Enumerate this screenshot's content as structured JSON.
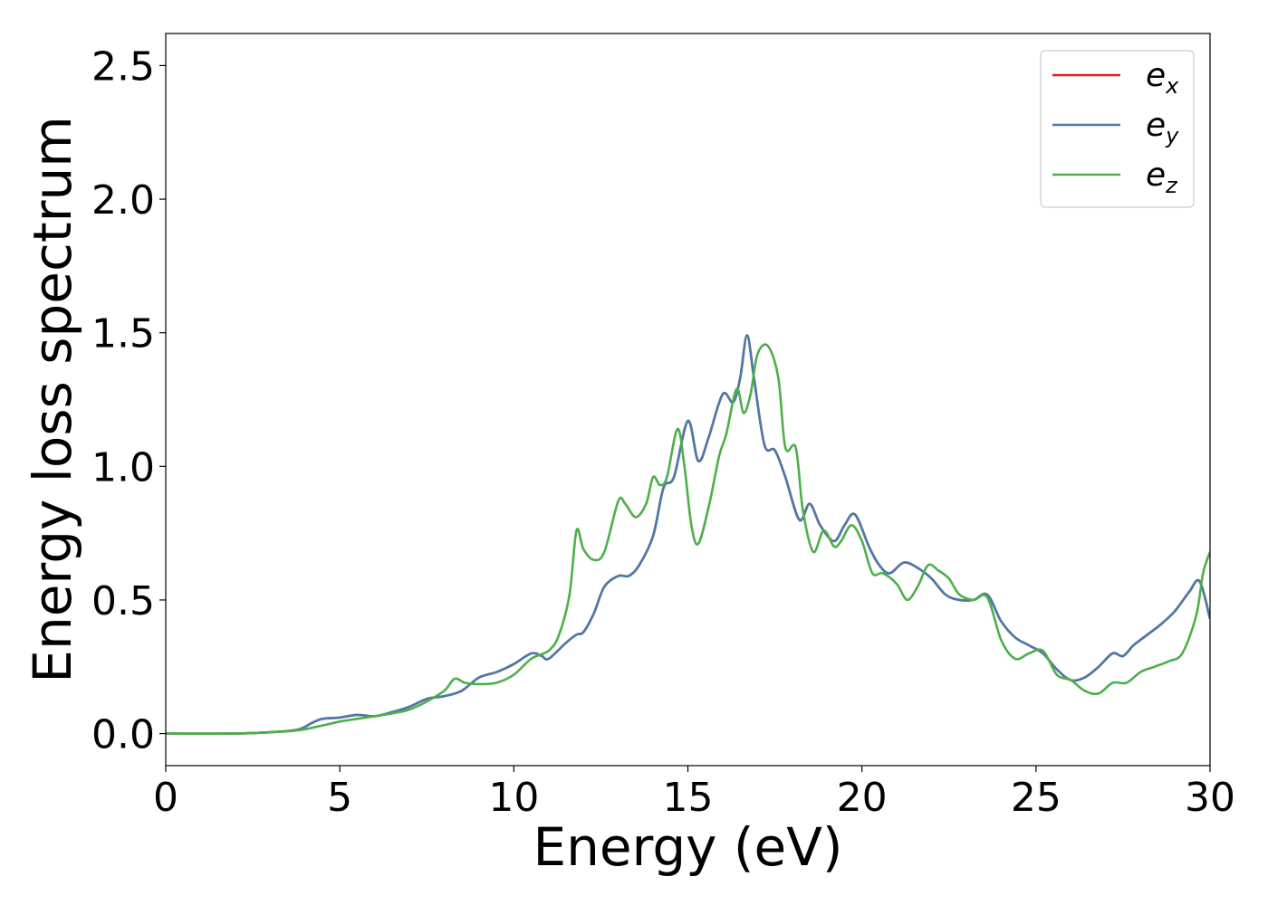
{
  "chart_data": {
    "type": "line",
    "title": "",
    "xlabel": "Energy (eV)",
    "ylabel": "Energy loss spectrum",
    "xlim": [
      0,
      30
    ],
    "ylim": [
      -0.12,
      2.62
    ],
    "xticks": [
      0,
      5,
      10,
      15,
      20,
      25,
      30
    ],
    "xtick_labels": [
      "0",
      "5",
      "10",
      "15",
      "20",
      "25",
      "30"
    ],
    "yticks": [
      0.0,
      0.5,
      1.0,
      1.5,
      2.0,
      2.5
    ],
    "ytick_labels": [
      "0.0",
      "0.5",
      "1.0",
      "1.5",
      "2.0",
      "2.5"
    ],
    "grid": false,
    "legend_position": "top-right",
    "series": [
      {
        "name": "e_x",
        "legend_base": "e",
        "legend_sub": "x",
        "color": "#e41a1c",
        "x": [
          0,
          2,
          3,
          3.8,
          4.2,
          4.5,
          5,
          5.5,
          6,
          6.5,
          7,
          7.5,
          8,
          8.5,
          9,
          9.5,
          10,
          10.5,
          10.8,
          11,
          11.5,
          11.8,
          12,
          12.3,
          12.6,
          13,
          13.3,
          13.6,
          14,
          14.3,
          14.6,
          15,
          15.3,
          15.6,
          16,
          16.3,
          16.5,
          16.7,
          16.9,
          17.2,
          17.5,
          17.8,
          18.2,
          18.5,
          18.8,
          19.2,
          19.5,
          19.8,
          20.2,
          20.5,
          20.8,
          21.2,
          21.6,
          22,
          22.4,
          22.8,
          23.2,
          23.6,
          24,
          24.4,
          24.8,
          25.2,
          25.6,
          26,
          26.4,
          26.8,
          27.2,
          27.5,
          27.8,
          28.2,
          28.6,
          29,
          29.4,
          29.7,
          30
        ],
        "y": [
          0.0,
          0.0,
          0.005,
          0.015,
          0.04,
          0.055,
          0.06,
          0.07,
          0.065,
          0.08,
          0.1,
          0.13,
          0.14,
          0.16,
          0.21,
          0.23,
          0.26,
          0.3,
          0.29,
          0.28,
          0.34,
          0.37,
          0.38,
          0.45,
          0.55,
          0.59,
          0.59,
          0.63,
          0.74,
          0.92,
          0.96,
          1.17,
          1.02,
          1.11,
          1.27,
          1.24,
          1.33,
          1.49,
          1.33,
          1.08,
          1.06,
          0.96,
          0.8,
          0.86,
          0.78,
          0.72,
          0.78,
          0.82,
          0.7,
          0.63,
          0.6,
          0.64,
          0.62,
          0.58,
          0.52,
          0.5,
          0.5,
          0.52,
          0.42,
          0.36,
          0.33,
          0.3,
          0.24,
          0.2,
          0.21,
          0.25,
          0.3,
          0.29,
          0.33,
          0.37,
          0.41,
          0.46,
          0.53,
          0.57,
          0.43
        ]
      },
      {
        "name": "e_y",
        "legend_base": "e",
        "legend_sub": "y",
        "color": "#4a7aab",
        "x": [
          0,
          2,
          3,
          3.8,
          4.2,
          4.5,
          5,
          5.5,
          6,
          6.5,
          7,
          7.5,
          8,
          8.5,
          9,
          9.5,
          10,
          10.5,
          10.8,
          11,
          11.5,
          11.8,
          12,
          12.3,
          12.6,
          13,
          13.3,
          13.6,
          14,
          14.3,
          14.6,
          15,
          15.3,
          15.6,
          16,
          16.3,
          16.5,
          16.7,
          16.9,
          17.2,
          17.5,
          17.8,
          18.2,
          18.5,
          18.8,
          19.2,
          19.5,
          19.8,
          20.2,
          20.5,
          20.8,
          21.2,
          21.6,
          22,
          22.4,
          22.8,
          23.2,
          23.6,
          24,
          24.4,
          24.8,
          25.2,
          25.6,
          26,
          26.4,
          26.8,
          27.2,
          27.5,
          27.8,
          28.2,
          28.6,
          29,
          29.4,
          29.7,
          30
        ],
        "y": [
          0.0,
          0.0,
          0.005,
          0.015,
          0.04,
          0.055,
          0.06,
          0.07,
          0.065,
          0.08,
          0.1,
          0.13,
          0.14,
          0.16,
          0.21,
          0.23,
          0.26,
          0.3,
          0.29,
          0.28,
          0.34,
          0.37,
          0.38,
          0.45,
          0.55,
          0.59,
          0.59,
          0.63,
          0.74,
          0.92,
          0.96,
          1.17,
          1.02,
          1.11,
          1.27,
          1.24,
          1.33,
          1.49,
          1.33,
          1.08,
          1.06,
          0.96,
          0.8,
          0.86,
          0.78,
          0.72,
          0.78,
          0.82,
          0.7,
          0.63,
          0.6,
          0.64,
          0.62,
          0.58,
          0.52,
          0.5,
          0.5,
          0.52,
          0.42,
          0.36,
          0.33,
          0.3,
          0.24,
          0.2,
          0.21,
          0.25,
          0.3,
          0.29,
          0.33,
          0.37,
          0.41,
          0.46,
          0.53,
          0.57,
          0.43
        ]
      },
      {
        "name": "e_z",
        "legend_base": "e",
        "legend_sub": "z",
        "color": "#4daf4a",
        "x": [
          0,
          2,
          3,
          3.8,
          4.5,
          5,
          5.5,
          6,
          6.5,
          7,
          7.5,
          8,
          8.3,
          8.6,
          9,
          9.5,
          10,
          10.5,
          11,
          11.3,
          11.6,
          11.8,
          12,
          12.3,
          12.6,
          13,
          13.2,
          13.5,
          13.8,
          14,
          14.2,
          14.4,
          14.7,
          14.9,
          15.1,
          15.3,
          15.6,
          15.9,
          16.1,
          16.4,
          16.6,
          16.8,
          17.0,
          17.3,
          17.6,
          17.8,
          18.1,
          18.3,
          18.6,
          18.9,
          19.2,
          19.4,
          19.7,
          20,
          20.3,
          20.6,
          21,
          21.3,
          21.6,
          21.9,
          22.2,
          22.5,
          22.8,
          23.2,
          23.6,
          24,
          24.4,
          24.8,
          25.2,
          25.6,
          26,
          26.4,
          26.8,
          27.2,
          27.6,
          28,
          28.4,
          28.8,
          29.2,
          29.6,
          29.8,
          30
        ],
        "y": [
          0.0,
          0.0,
          0.005,
          0.012,
          0.03,
          0.045,
          0.055,
          0.065,
          0.075,
          0.09,
          0.12,
          0.16,
          0.205,
          0.19,
          0.185,
          0.19,
          0.22,
          0.28,
          0.31,
          0.37,
          0.52,
          0.76,
          0.69,
          0.65,
          0.68,
          0.87,
          0.86,
          0.81,
          0.86,
          0.96,
          0.93,
          0.96,
          1.14,
          1.0,
          0.78,
          0.71,
          0.85,
          1.04,
          1.12,
          1.29,
          1.2,
          1.27,
          1.42,
          1.45,
          1.33,
          1.07,
          1.07,
          0.84,
          0.68,
          0.76,
          0.7,
          0.72,
          0.78,
          0.72,
          0.6,
          0.6,
          0.56,
          0.5,
          0.55,
          0.63,
          0.61,
          0.58,
          0.52,
          0.5,
          0.51,
          0.35,
          0.28,
          0.3,
          0.31,
          0.22,
          0.2,
          0.16,
          0.15,
          0.19,
          0.19,
          0.23,
          0.25,
          0.27,
          0.3,
          0.44,
          0.6,
          0.68
        ]
      }
    ]
  }
}
